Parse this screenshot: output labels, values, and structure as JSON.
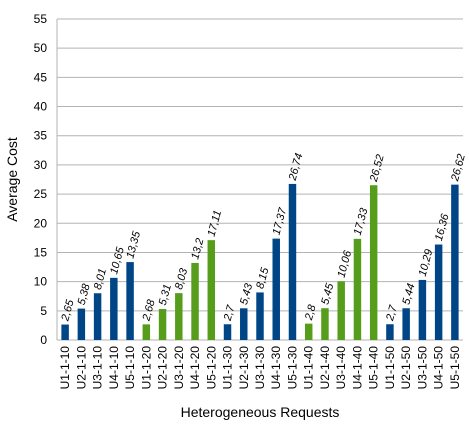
{
  "chart_data": {
    "type": "bar",
    "title": "",
    "xlabel": "Heterogeneous Requests",
    "ylabel": "Average Cost",
    "ylim": [
      0,
      55
    ],
    "yticks": [
      0,
      5,
      10,
      15,
      20,
      25,
      30,
      35,
      40,
      45,
      50,
      55
    ],
    "grid": true,
    "legend": "none",
    "categories": [
      "U1-1-10",
      "U2-1-10",
      "U3-1-10",
      "U4-1-10",
      "U5-1-10",
      "U1-1-20",
      "U2-1-20",
      "U3-1-20",
      "U4-1-20",
      "U5-1-20",
      "U1-1-30",
      "U2-1-30",
      "U3-1-30",
      "U4-1-30",
      "U5-1-30",
      "U1-1-40",
      "U2-1-40",
      "U3-1-40",
      "U4-1-40",
      "U5-1-40",
      "U1-1-50",
      "U2-1-50",
      "U3-1-50",
      "U4-1-50",
      "U5-1-50"
    ],
    "values": [
      2.65,
      5.38,
      8.01,
      10.65,
      13.35,
      2.68,
      5.31,
      8.03,
      13.2,
      17.11,
      2.7,
      5.43,
      8.15,
      17.37,
      26.74,
      2.8,
      5.45,
      10.06,
      17.33,
      26.52,
      2.7,
      5.44,
      10.29,
      16.36,
      26.62
    ],
    "value_labels": [
      "2,65",
      "5,38",
      "8,01",
      "10,65",
      "13,35",
      "2,68",
      "5,31",
      "8,03",
      "13,2",
      "17,11",
      "2,7",
      "5,43",
      "8,15",
      "17,37",
      "26,74",
      "2,8",
      "5,45",
      "10,06",
      "17,33",
      "26,52",
      "2,7",
      "5,44",
      "10,29",
      "16,36",
      "26,62"
    ],
    "bar_colors": [
      "#004586",
      "#004586",
      "#004586",
      "#004586",
      "#004586",
      "#579d1c",
      "#579d1c",
      "#579d1c",
      "#579d1c",
      "#579d1c",
      "#004586",
      "#004586",
      "#004586",
      "#004586",
      "#004586",
      "#579d1c",
      "#579d1c",
      "#579d1c",
      "#579d1c",
      "#579d1c",
      "#004586",
      "#004586",
      "#004586",
      "#004586",
      "#004586"
    ],
    "grid_color": "#b3b3b3"
  }
}
